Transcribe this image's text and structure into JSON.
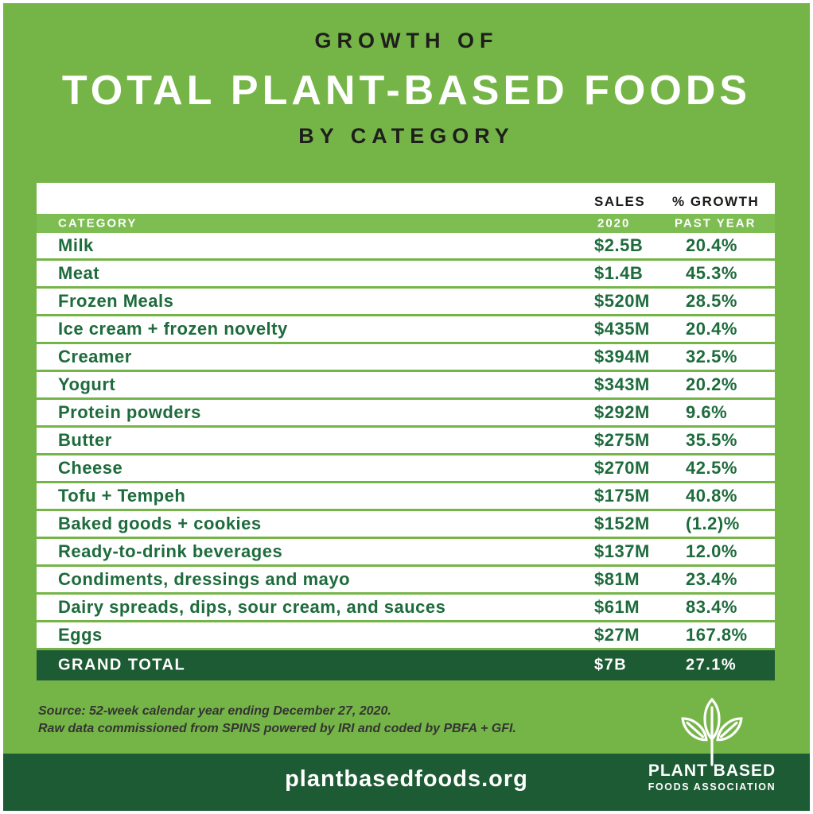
{
  "header": {
    "kicker": "GROWTH OF",
    "title": "TOTAL PLANT-BASED FOODS",
    "subtitle": "BY CATEGORY"
  },
  "table": {
    "col_headers": {
      "category": "CATEGORY",
      "sales_line1": "SALES",
      "sales_line2": "2020",
      "growth_line1": "% GROWTH",
      "growth_line2": "PAST YEAR"
    },
    "rows": [
      {
        "category": "Milk",
        "sales": "$2.5B",
        "growth": "20.4%"
      },
      {
        "category": "Meat",
        "sales": "$1.4B",
        "growth": "45.3%"
      },
      {
        "category": "Frozen Meals",
        "sales": "$520M",
        "growth": "28.5%"
      },
      {
        "category": "Ice cream + frozen novelty",
        "sales": "$435M",
        "growth": "20.4%"
      },
      {
        "category": "Creamer",
        "sales": "$394M",
        "growth": "32.5%"
      },
      {
        "category": "Yogurt",
        "sales": "$343M",
        "growth": "20.2%"
      },
      {
        "category": "Protein powders",
        "sales": "$292M",
        "growth": "9.6%"
      },
      {
        "category": "Butter",
        "sales": "$275M",
        "growth": "35.5%"
      },
      {
        "category": "Cheese",
        "sales": "$270M",
        "growth": "42.5%"
      },
      {
        "category": "Tofu + Tempeh",
        "sales": "$175M",
        "growth": "40.8%"
      },
      {
        "category": "Baked goods + cookies",
        "sales": "$152M",
        "growth": "(1.2)%"
      },
      {
        "category": "Ready-to-drink beverages",
        "sales": "$137M",
        "growth": "12.0%"
      },
      {
        "category": "Condiments, dressings and mayo",
        "sales": "$81M",
        "growth": "23.4%"
      },
      {
        "category": "Dairy spreads, dips, sour cream, and sauces",
        "sales": "$61M",
        "growth": "83.4%"
      },
      {
        "category": "Eggs",
        "sales": "$27M",
        "growth": "167.8%"
      }
    ],
    "grand_total": {
      "label": "GRAND TOTAL",
      "sales": "$7B",
      "growth": "27.1%"
    }
  },
  "footer": {
    "source_line1": "Source: 52-week calendar year ending December 27, 2020.",
    "source_line2": "Raw data commissioned from SPINS powered by IRI and coded by PBFA + GFI.",
    "website": "plantbasedfoods.org",
    "logo": {
      "icon": "three-leaf-plant-icon",
      "name_line1": "PLANT BASED",
      "name_line2": "FOODS ASSOCIATION"
    }
  },
  "colors": {
    "background_green": "#75b548",
    "band_green": "#7dbd51",
    "dark_green": "#1d5b34",
    "row_text_green": "#1e6b3c",
    "near_black": "#1e1e1c",
    "white": "#ffffff"
  },
  "chart_data": {
    "type": "table",
    "title": "Growth of Total Plant-Based Foods by Category",
    "columns": [
      "Category",
      "Sales 2020",
      "% Growth Past Year"
    ],
    "rows": [
      [
        "Milk",
        "$2.5B",
        "20.4%"
      ],
      [
        "Meat",
        "$1.4B",
        "45.3%"
      ],
      [
        "Frozen Meals",
        "$520M",
        "28.5%"
      ],
      [
        "Ice cream + frozen novelty",
        "$435M",
        "20.4%"
      ],
      [
        "Creamer",
        "$394M",
        "32.5%"
      ],
      [
        "Yogurt",
        "$343M",
        "20.2%"
      ],
      [
        "Protein powders",
        "$292M",
        "9.6%"
      ],
      [
        "Butter",
        "$275M",
        "35.5%"
      ],
      [
        "Cheese",
        "$270M",
        "42.5%"
      ],
      [
        "Tofu + Tempeh",
        "$175M",
        "40.8%"
      ],
      [
        "Baked goods + cookies",
        "$152M",
        "(1.2)%"
      ],
      [
        "Ready-to-drink beverages",
        "$137M",
        "12.0%"
      ],
      [
        "Condiments, dressings and mayo",
        "$81M",
        "23.4%"
      ],
      [
        "Dairy spreads, dips, sour cream, and sauces",
        "$61M",
        "83.4%"
      ],
      [
        "Eggs",
        "$27M",
        "167.8%"
      ]
    ],
    "grand_total_row": [
      "GRAND TOTAL",
      "$7B",
      "27.1%"
    ]
  }
}
